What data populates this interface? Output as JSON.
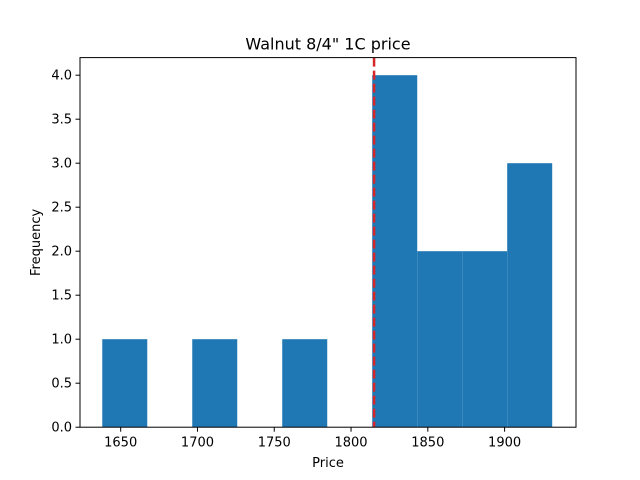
{
  "chart_data": {
    "type": "histogram",
    "title": "Walnut 8/4\" 1C price",
    "xlabel": "Price",
    "ylabel": "Frequency",
    "xlim": [
      1623.5,
      1946.5
    ],
    "ylim": [
      0,
      4.2
    ],
    "xticks": [
      1650,
      1700,
      1750,
      1800,
      1850,
      1900
    ],
    "yticks": [
      0.0,
      0.5,
      1.0,
      1.5,
      2.0,
      2.5,
      3.0,
      3.5,
      4.0
    ],
    "xtick_labels": [
      "1650",
      "1700",
      "1750",
      "1800",
      "1850",
      "1900"
    ],
    "ytick_labels": [
      "0.0",
      "0.5",
      "1.0",
      "1.5",
      "2.0",
      "2.5",
      "3.0",
      "3.5",
      "4.0"
    ],
    "bins": [
      1638,
      1667.3,
      1696.6,
      1725.9,
      1755.2,
      1784.5,
      1813.8,
      1843.1,
      1872.4,
      1901.7,
      1931
    ],
    "counts": [
      1,
      0,
      1,
      0,
      1,
      0,
      4,
      2,
      2,
      3
    ],
    "bar_color": "#1f77b4",
    "reference_line": {
      "x": 1815,
      "color": "#d62728",
      "style": "dashed"
    },
    "grid": false,
    "legend": "none"
  }
}
